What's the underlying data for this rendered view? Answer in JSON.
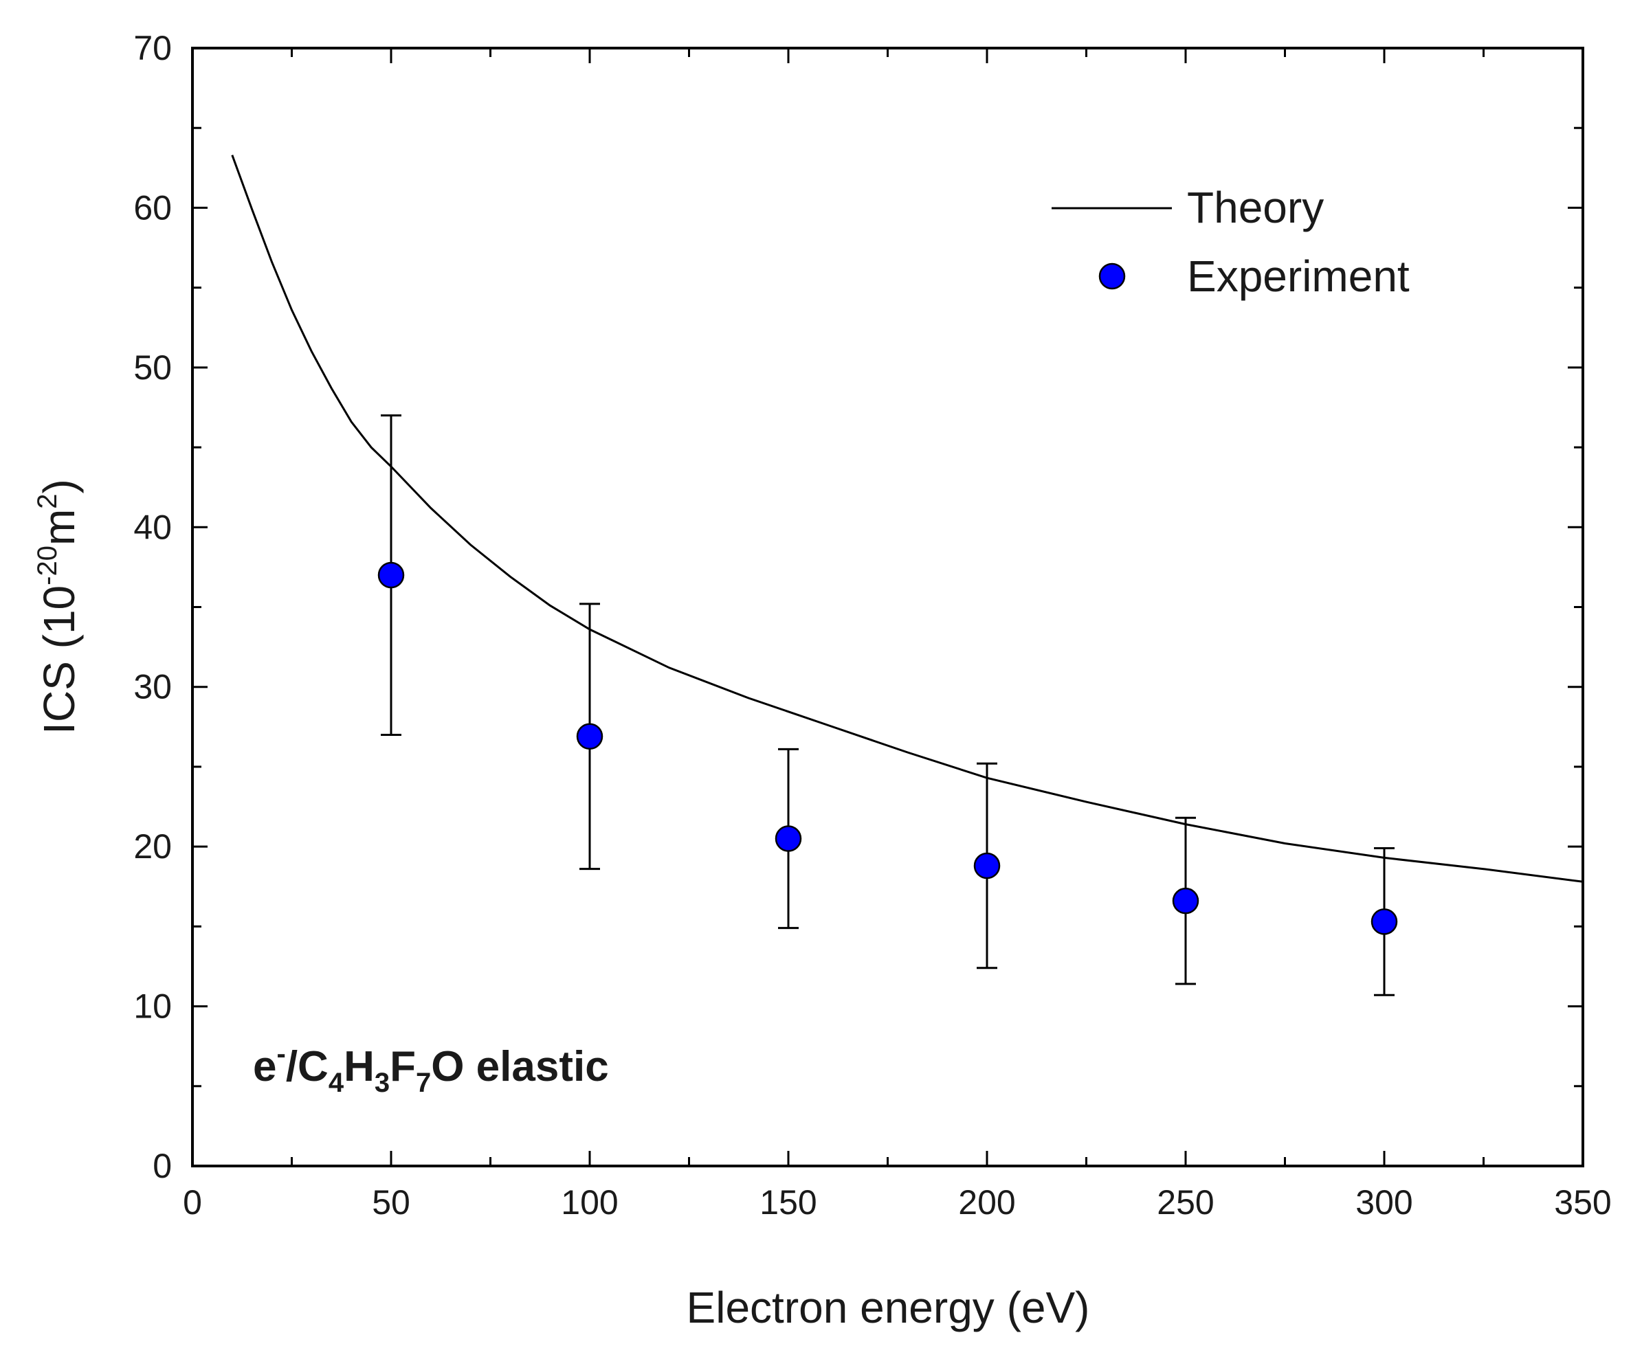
{
  "chart_data": {
    "type": "scatter",
    "xlabel": "Electron energy (eV)",
    "ylabel": {
      "prefix": "ICS (10",
      "exp": "-20",
      "mid": "m",
      "exp2": "2",
      "suffix": ")"
    },
    "xlim": [
      0,
      350
    ],
    "ylim": [
      0,
      70
    ],
    "x_ticks": [
      0,
      50,
      100,
      150,
      200,
      250,
      300,
      350
    ],
    "y_ticks": [
      0,
      10,
      20,
      30,
      40,
      50,
      60,
      70
    ],
    "grid": false,
    "legend": {
      "placement": "top-right",
      "entries": [
        {
          "name": "Theory",
          "marker": "line"
        },
        {
          "name": "Experiment",
          "marker": "circle"
        }
      ]
    },
    "annotation": {
      "e": "e",
      "sup": "-",
      "slash": "/C",
      "s1": "4",
      "h": "H",
      "s2": "3",
      "f": "F",
      "s3": "7",
      "tail": "O elastic"
    },
    "series": [
      {
        "name": "Theory",
        "type": "line",
        "color": "#000000",
        "x": [
          10,
          15,
          20,
          25,
          30,
          35,
          40,
          45,
          50,
          60,
          70,
          80,
          90,
          100,
          120,
          140,
          160,
          180,
          200,
          225,
          250,
          275,
          300,
          325,
          350
        ],
        "y": [
          63.3,
          59.9,
          56.6,
          53.6,
          51.0,
          48.7,
          46.6,
          45.0,
          43.8,
          41.2,
          38.9,
          36.9,
          35.1,
          33.6,
          31.2,
          29.3,
          27.6,
          25.9,
          24.3,
          22.8,
          21.4,
          20.2,
          19.3,
          18.6,
          17.8
        ]
      },
      {
        "name": "Experiment",
        "type": "scatter",
        "color": "#0000ff",
        "x": [
          50,
          100,
          150,
          200,
          250,
          300
        ],
        "y": [
          37.0,
          26.9,
          20.5,
          18.8,
          16.6,
          15.3
        ],
        "yerr_low": [
          27.0,
          18.6,
          14.9,
          12.4,
          11.4,
          10.7
        ],
        "yerr_high": [
          47.0,
          35.2,
          26.1,
          25.2,
          21.8,
          19.9
        ]
      }
    ]
  }
}
